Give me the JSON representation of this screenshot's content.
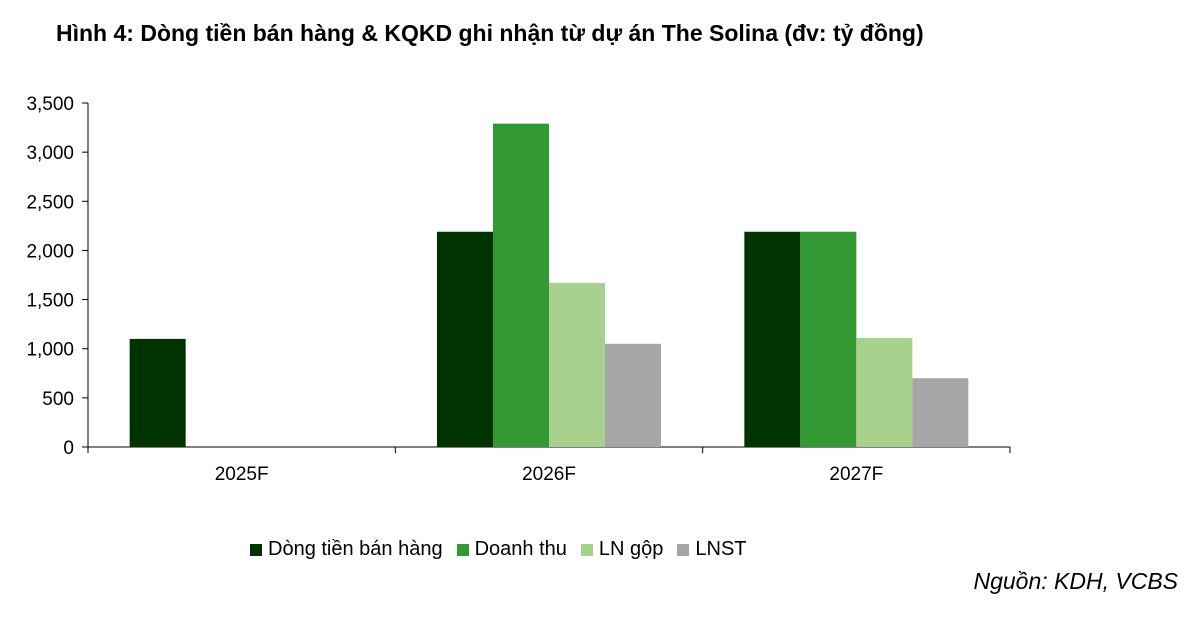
{
  "figure": {
    "title": "Hình 4: Dòng tiền bán hàng & KQKD ghi nhận từ dự án The Solina (đv: tỷ đồng)",
    "source": "Nguồn: KDH, VCBS"
  },
  "chart_data": {
    "type": "bar",
    "title": "Hình 4: Dòng tiền bán hàng & KQKD ghi nhận từ dự án The Solina (đv: tỷ đồng)",
    "xlabel": "",
    "ylabel": "",
    "categories": [
      "2025F",
      "2026F",
      "2027F"
    ],
    "ylim": [
      0,
      3500
    ],
    "yticks": [
      0,
      500,
      1000,
      1500,
      2000,
      2500,
      3000,
      3500
    ],
    "ytick_labels": [
      "0",
      "500",
      "1,000",
      "1,500",
      "2,000",
      "2,500",
      "3,000",
      "3,500"
    ],
    "grid": false,
    "legend_position": "bottom",
    "series": [
      {
        "name": "Dòng tiền bán hàng",
        "values": [
          1100,
          2190,
          2190
        ],
        "color": "#003300"
      },
      {
        "name": "Doanh thu",
        "values": [
          0,
          3290,
          2190
        ],
        "color": "#339933"
      },
      {
        "name": "LN gộp",
        "values": [
          0,
          1670,
          1110
        ],
        "color": "#a9d18e"
      },
      {
        "name": "LNST",
        "values": [
          0,
          1050,
          700
        ],
        "color": "#a6a6a6"
      }
    ]
  }
}
